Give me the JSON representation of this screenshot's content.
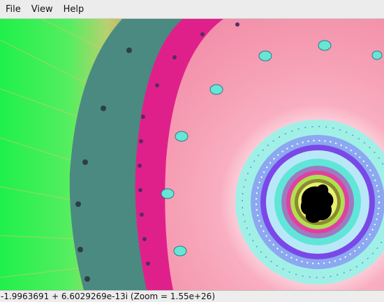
{
  "menu": {
    "items": [
      {
        "label": "File"
      },
      {
        "label": "View"
      },
      {
        "label": "Help"
      }
    ]
  },
  "status": {
    "text": "-1.9963691 + 6.6029269e-13i (Zoom = 1.55e+26)"
  },
  "colors": {
    "outer_green": "#22ee44",
    "ring_magenta": "#e0208a",
    "pink_field": "#f59ab0",
    "cyan_band": "#60e6d8",
    "violet_band": "#7a48e8",
    "core_black": "#000000"
  }
}
